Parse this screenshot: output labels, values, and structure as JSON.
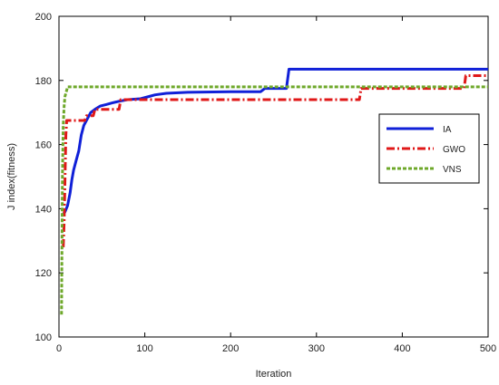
{
  "chart_data": {
    "type": "line",
    "title": "",
    "xlabel": "Iteration",
    "ylabel": "J index(fitness)",
    "xlim": [
      0,
      500
    ],
    "ylim": [
      100,
      200
    ],
    "xticks": [
      0,
      100,
      200,
      300,
      400,
      500
    ],
    "yticks": [
      100,
      120,
      140,
      160,
      180,
      200
    ],
    "grid": false,
    "legend_position": "right",
    "series": [
      {
        "name": "IA",
        "color": "#1020d8",
        "style": "solid",
        "points": [
          [
            4,
            138
          ],
          [
            7,
            139
          ],
          [
            10,
            141
          ],
          [
            13,
            145
          ],
          [
            15,
            149
          ],
          [
            17,
            152
          ],
          [
            20,
            155
          ],
          [
            23,
            158
          ],
          [
            26,
            163
          ],
          [
            29,
            166
          ],
          [
            33,
            168
          ],
          [
            37,
            170
          ],
          [
            42,
            171
          ],
          [
            48,
            172
          ],
          [
            55,
            172.5
          ],
          [
            62,
            173
          ],
          [
            70,
            173.5
          ],
          [
            80,
            174
          ],
          [
            95,
            174.3
          ],
          [
            105,
            175
          ],
          [
            112,
            175.5
          ],
          [
            125,
            176
          ],
          [
            150,
            176.3
          ],
          [
            200,
            176.5
          ],
          [
            235,
            176.5
          ],
          [
            240,
            177.5
          ],
          [
            265,
            177.5
          ],
          [
            268,
            183.5
          ],
          [
            500,
            183.5
          ]
        ]
      },
      {
        "name": "GWO",
        "color": "#e01818",
        "style": "dashdot",
        "points": [
          [
            5,
            128
          ],
          [
            6,
            136
          ],
          [
            8,
            163
          ],
          [
            9,
            167.5
          ],
          [
            30,
            167.5
          ],
          [
            32,
            169
          ],
          [
            40,
            169
          ],
          [
            42,
            171
          ],
          [
            70,
            171
          ],
          [
            72,
            174
          ],
          [
            150,
            174
          ],
          [
            350,
            174
          ],
          [
            352,
            177.5
          ],
          [
            472,
            177.5
          ],
          [
            474,
            181.5
          ],
          [
            500,
            181.5
          ]
        ]
      },
      {
        "name": "VNS",
        "color": "#6ea82a",
        "style": "dotted",
        "points": [
          [
            3,
            107
          ],
          [
            4,
            150
          ],
          [
            5,
            166
          ],
          [
            6,
            172
          ],
          [
            7,
            175
          ],
          [
            8,
            176
          ],
          [
            10,
            178
          ],
          [
            500,
            178
          ]
        ]
      }
    ]
  }
}
